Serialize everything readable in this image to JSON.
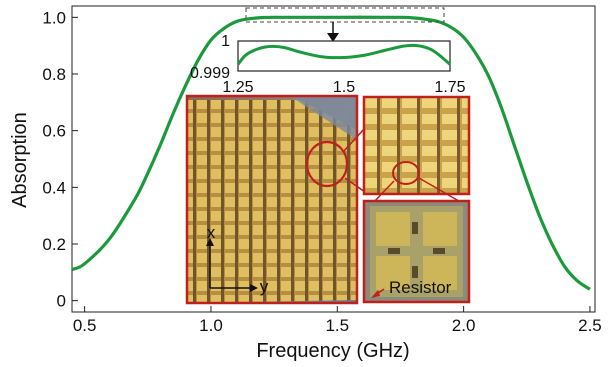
{
  "chart_data": {
    "type": "line",
    "xlabel": "Frequency (GHz)",
    "ylabel": "Absorption",
    "xlim": [
      0.45,
      2.52
    ],
    "ylim": [
      -0.04,
      1.04
    ],
    "x_ticks": [
      "0.5",
      "1.0",
      "1.5",
      "2.0",
      "2.5"
    ],
    "y_ticks": [
      "0",
      "0.2",
      "0.4",
      "0.6",
      "0.8",
      "1.0"
    ],
    "series_color": "#1a9a3c",
    "series": [
      {
        "x": [
          0.45,
          0.5,
          0.6,
          0.7,
          0.75,
          0.8,
          0.85,
          0.9,
          0.95,
          1.0,
          1.05,
          1.1,
          1.15,
          1.2,
          1.25,
          1.5,
          1.75,
          1.8,
          1.85,
          1.9,
          1.95,
          2.0,
          2.05,
          2.1,
          2.15,
          2.2,
          2.25,
          2.3,
          2.35,
          2.4,
          2.45,
          2.5
        ],
        "y": [
          0.11,
          0.13,
          0.22,
          0.36,
          0.45,
          0.55,
          0.66,
          0.76,
          0.85,
          0.92,
          0.96,
          0.985,
          0.995,
          0.999,
          1.0,
          1.0,
          1.0,
          0.998,
          0.993,
          0.985,
          0.965,
          0.93,
          0.87,
          0.79,
          0.68,
          0.55,
          0.42,
          0.3,
          0.2,
          0.12,
          0.07,
          0.04
        ]
      }
    ],
    "inset": {
      "xlim": [
        1.25,
        1.75
      ],
      "ylim": [
        0.999,
        1
      ],
      "x_ticks": [
        "1.25",
        "1.5",
        "1.75"
      ],
      "y_ticks": [
        "0.999",
        "1"
      ],
      "x": [
        1.25,
        1.27,
        1.3,
        1.33,
        1.36,
        1.4,
        1.45,
        1.5,
        1.55,
        1.6,
        1.64,
        1.67,
        1.7,
        1.72,
        1.75
      ],
      "y": [
        0.99922,
        0.99955,
        0.99975,
        0.99982,
        0.99978,
        0.99962,
        0.99947,
        0.99945,
        0.99953,
        0.9997,
        0.99983,
        0.99985,
        0.99975,
        0.99958,
        0.99922
      ]
    },
    "photo_labels": {
      "axis_x": "x",
      "axis_y": "y",
      "resistor": "Resistor"
    }
  }
}
